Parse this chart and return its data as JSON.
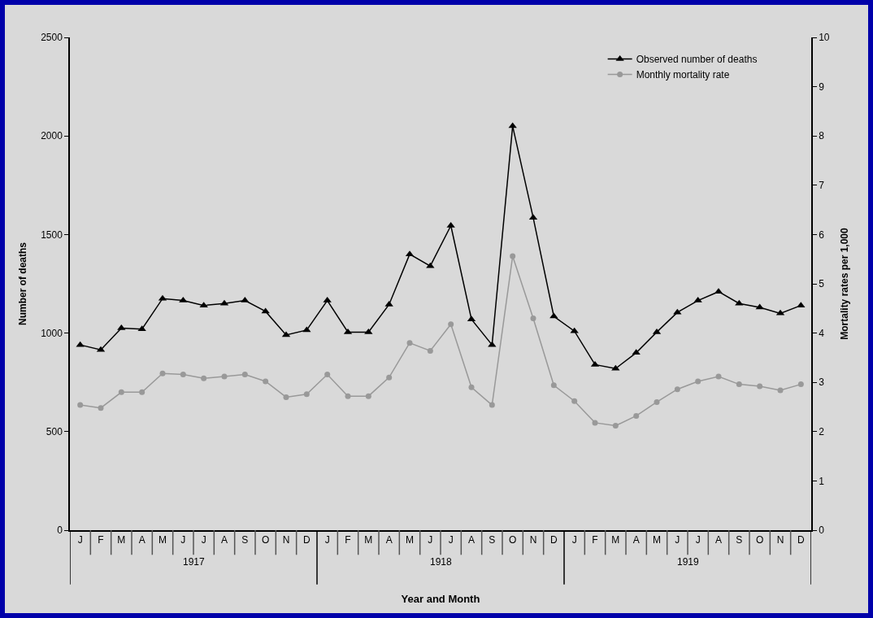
{
  "chart_data": {
    "type": "line",
    "xlabel": "Year and Month",
    "ylabel": "Number of deaths",
    "y2label": "Mortality rates per 1,000",
    "categories": [
      "J",
      "F",
      "M",
      "A",
      "M",
      "J",
      "J",
      "A",
      "S",
      "O",
      "N",
      "D",
      "J",
      "F",
      "M",
      "A",
      "M",
      "J",
      "J",
      "A",
      "S",
      "O",
      "N",
      "D",
      "J",
      "F",
      "M",
      "A",
      "M",
      "J",
      "J",
      "A",
      "S",
      "O",
      "N",
      "D"
    ],
    "series": [
      {
        "name": "Observed number of deaths",
        "color": "#000000",
        "marker": "triangle",
        "values": [
          940,
          915,
          1025,
          1020,
          1175,
          1165,
          1140,
          1150,
          1165,
          1110,
          990,
          1015,
          1165,
          1005,
          1005,
          1145,
          1400,
          1340,
          1545,
          1070,
          940,
          2050,
          1585,
          1085,
          1010,
          840,
          820,
          900,
          1005,
          1105,
          1165,
          1210,
          1150,
          1130,
          1100,
          1140
        ]
      },
      {
        "name": "Monthly mortality rate",
        "color": "#999999",
        "marker": "circle",
        "axis": "y2",
        "values": [
          2.54,
          2.48,
          2.8,
          2.8,
          3.18,
          3.16,
          3.08,
          3.12,
          3.16,
          3.02,
          2.7,
          2.76,
          3.16,
          2.72,
          2.72,
          3.1,
          3.8,
          3.64,
          4.18,
          2.9,
          2.54,
          5.56,
          4.3,
          2.94,
          2.62,
          2.18,
          2.12,
          2.32,
          2.6,
          2.86,
          3.02,
          3.12,
          2.96,
          2.92,
          2.84,
          2.96
        ]
      }
    ],
    "annotations": [
      "1917",
      "1918",
      "1919"
    ],
    "ylim": [
      0,
      2500
    ],
    "yticks": [
      0,
      500,
      1000,
      1500,
      2000,
      2500
    ],
    "y2lim": [
      0,
      10
    ],
    "y2ticks": [
      0,
      1,
      2,
      3,
      4,
      5,
      6,
      7,
      8,
      9,
      10
    ],
    "legend": "top right",
    "grid": false
  }
}
